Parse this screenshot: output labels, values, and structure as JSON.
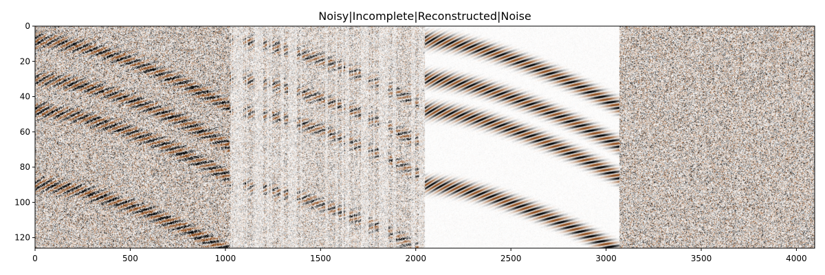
{
  "chart_data": {
    "type": "heatmap",
    "title": "Noisy|Incomplete|Reconstructed|Noise",
    "xlabel": "",
    "ylabel": "",
    "xlim": [
      0,
      4096
    ],
    "ylim": [
      126,
      0
    ],
    "x_ticks": [
      0,
      500,
      1000,
      1500,
      2000,
      2500,
      3000,
      3500,
      4000
    ],
    "y_ticks": [
      0,
      20,
      40,
      60,
      80,
      100,
      120
    ],
    "grid": false,
    "colormap": [
      "#000000",
      "#ffffff",
      "#8b4a1a"
    ],
    "panels": [
      {
        "name": "Noisy",
        "x_range": [
          0,
          1024
        ],
        "noise_level": 0.75,
        "signal": 1.0,
        "trace_mask": 0.0
      },
      {
        "name": "Incomplete",
        "x_range": [
          1024,
          2048
        ],
        "noise_level": 0.55,
        "signal": 0.7,
        "trace_mask": 0.4
      },
      {
        "name": "Reconstructed",
        "x_range": [
          2048,
          3072
        ],
        "noise_level": 0.04,
        "signal": 1.0,
        "trace_mask": 0.0
      },
      {
        "name": "Noise",
        "x_range": [
          3072,
          4096
        ],
        "noise_level": 0.75,
        "signal": 0.0,
        "trace_mask": 0.0
      }
    ],
    "events_y": [
      8,
      30,
      48,
      90
    ]
  }
}
